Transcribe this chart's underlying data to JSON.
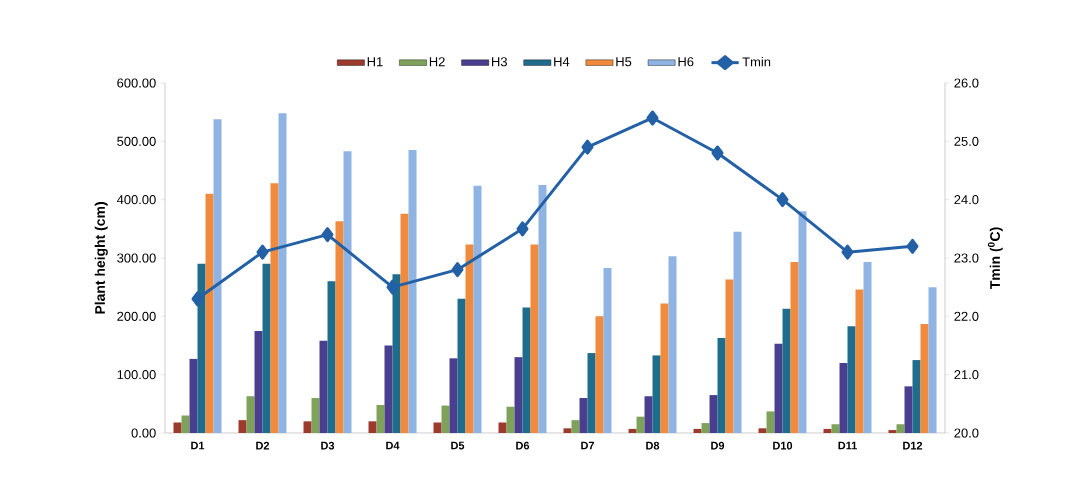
{
  "chart_data": {
    "type": "bar",
    "ylabel": "Plant height (cm)",
    "y2label": "Tmin ($^{0}$C)",
    "categories": [
      "D1",
      "D2",
      "D3",
      "D4",
      "D5",
      "D6",
      "D7",
      "D8",
      "D9",
      "D10",
      "D11",
      "D12"
    ],
    "series": [
      {
        "name": "H1",
        "color": "#9c3a2e",
        "values": [
          18,
          22,
          20,
          20,
          18,
          18,
          8,
          7,
          7,
          8,
          7,
          5
        ]
      },
      {
        "name": "H2",
        "color": "#7fa25a",
        "values": [
          30,
          63,
          60,
          48,
          47,
          45,
          22,
          28,
          17,
          37,
          15,
          15
        ]
      },
      {
        "name": "H3",
        "color": "#4a3f8f",
        "values": [
          127,
          175,
          158,
          150,
          128,
          130,
          60,
          63,
          65,
          153,
          120,
          80
        ]
      },
      {
        "name": "H4",
        "color": "#1f6d8c",
        "values": [
          290,
          290,
          260,
          272,
          230,
          215,
          137,
          133,
          163,
          213,
          183,
          125
        ]
      },
      {
        "name": "H5",
        "color": "#f08a3c",
        "values": [
          410,
          428,
          363,
          376,
          323,
          323,
          200,
          222,
          263,
          293,
          246,
          187
        ]
      },
      {
        "name": "H6",
        "color": "#8fb4e3",
        "values": [
          538,
          548,
          483,
          485,
          424,
          425,
          283,
          303,
          345,
          380,
          293,
          250
        ]
      },
      {
        "name": "Tmin",
        "type": "line",
        "axis": "y2",
        "color": "#2360a5",
        "marker": "diamond",
        "line_style": "solid",
        "values": [
          22.3,
          23.1,
          23.4,
          22.5,
          22.8,
          23.5,
          24.9,
          25.4,
          24.8,
          24.0,
          23.1,
          23.2
        ]
      }
    ],
    "ylim": [
      0,
      600
    ],
    "yticks": [
      {
        "value": 0,
        "label": "0.00"
      },
      {
        "value": 100,
        "label": "100.00"
      },
      {
        "value": 200,
        "label": "200.00"
      },
      {
        "value": 300,
        "label": "300.00"
      },
      {
        "value": 400,
        "label": "400.00"
      },
      {
        "value": 500,
        "label": "500.00"
      },
      {
        "value": 600,
        "label": "600.00"
      }
    ],
    "y2lim": [
      20,
      26
    ],
    "y2ticks": [
      {
        "value": 20,
        "label": "20.0"
      },
      {
        "value": 21,
        "label": "21.0"
      },
      {
        "value": 22,
        "label": "22.0"
      },
      {
        "value": 23,
        "label": "23.0"
      },
      {
        "value": 24,
        "label": "24.0"
      },
      {
        "value": 25,
        "label": "25.0"
      },
      {
        "value": 26,
        "label": "26.0"
      }
    ],
    "legend": "top"
  }
}
